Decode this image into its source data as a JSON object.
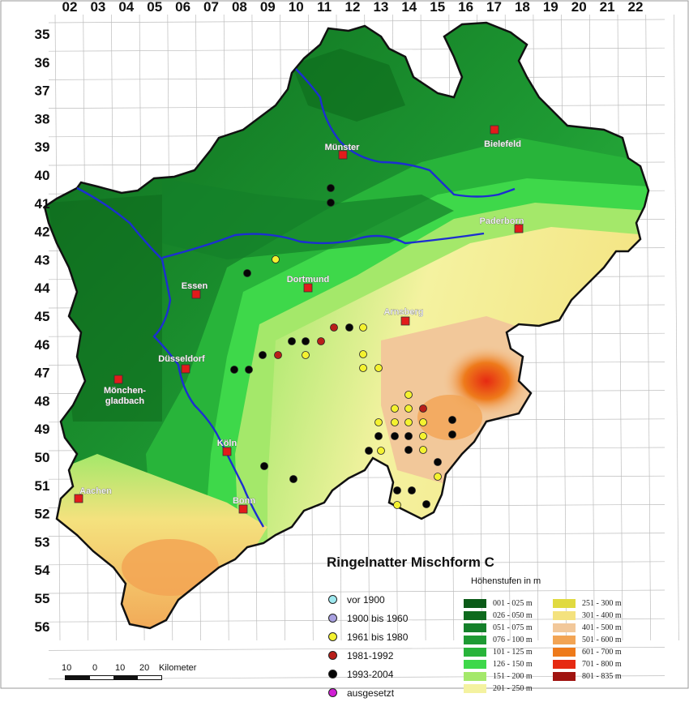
{
  "map": {
    "title": "Ringelnatter Mischform C",
    "grid_columns": [
      "02",
      "03",
      "04",
      "05",
      "06",
      "07",
      "08",
      "09",
      "10",
      "11",
      "12",
      "13",
      "14",
      "15",
      "16",
      "17",
      "18",
      "19",
      "20",
      "21",
      "22"
    ],
    "grid_rows": [
      "35",
      "36",
      "37",
      "38",
      "39",
      "40",
      "41",
      "42",
      "43",
      "44",
      "45",
      "46",
      "47",
      "48",
      "49",
      "50",
      "51",
      "52",
      "53",
      "54",
      "55",
      "56"
    ],
    "cities": [
      "Münster",
      "Bielefeld",
      "Paderborn",
      "Essen",
      "Dortmund",
      "Arnsberg",
      "Düsseldorf",
      "Mönchen-gladbach",
      "Köln",
      "Bonn",
      "Aachen"
    ],
    "legend_periods_title": "",
    "legend_periods": [
      {
        "label": "vor 1900",
        "color": "#9ee8ef"
      },
      {
        "label": "1900 bis 1960",
        "color": "#a8a0e0"
      },
      {
        "label": "1961 bis 1980",
        "color": "#f4f230"
      },
      {
        "label": "1981-1992",
        "color": "#b81f1a"
      },
      {
        "label": "1993-2004",
        "color": "#050505"
      },
      {
        "label": "ausgesetzt",
        "color": "#d01fd4"
      }
    ],
    "elevation_title": "Höhenstufen in m",
    "elevation_legend": [
      {
        "label": "001 - 025 m",
        "color": "#0a5a17"
      },
      {
        "label": "026 - 050 m",
        "color": "#0e6a1d"
      },
      {
        "label": "051 - 075 m",
        "color": "#14802a"
      },
      {
        "label": "076 - 100 m",
        "color": "#1e9a33"
      },
      {
        "label": "101 - 125 m",
        "color": "#28b43a"
      },
      {
        "label": "126 - 150 m",
        "color": "#3ed84a"
      },
      {
        "label": "151 - 200 m",
        "color": "#a4e86a"
      },
      {
        "label": "201 - 250 m",
        "color": "#f4f2a0"
      },
      {
        "label": "251 - 300 m",
        "color": "#e0da40"
      },
      {
        "label": "301 - 400 m",
        "color": "#f4e27e"
      },
      {
        "label": "401 - 500 m",
        "color": "#f2c89a"
      },
      {
        "label": "501 - 600 m",
        "color": "#f2a454"
      },
      {
        "label": "601 - 700 m",
        "color": "#ee7a1a"
      },
      {
        "label": "701 - 800 m",
        "color": "#e62a12"
      },
      {
        "label": "801 - 835 m",
        "color": "#a01410"
      }
    ],
    "scale_labels": [
      "10",
      "0",
      "10",
      "20",
      "Kilometer"
    ],
    "river_color": "#1c2fd0",
    "city_marker_color": "#e21b1b"
  }
}
